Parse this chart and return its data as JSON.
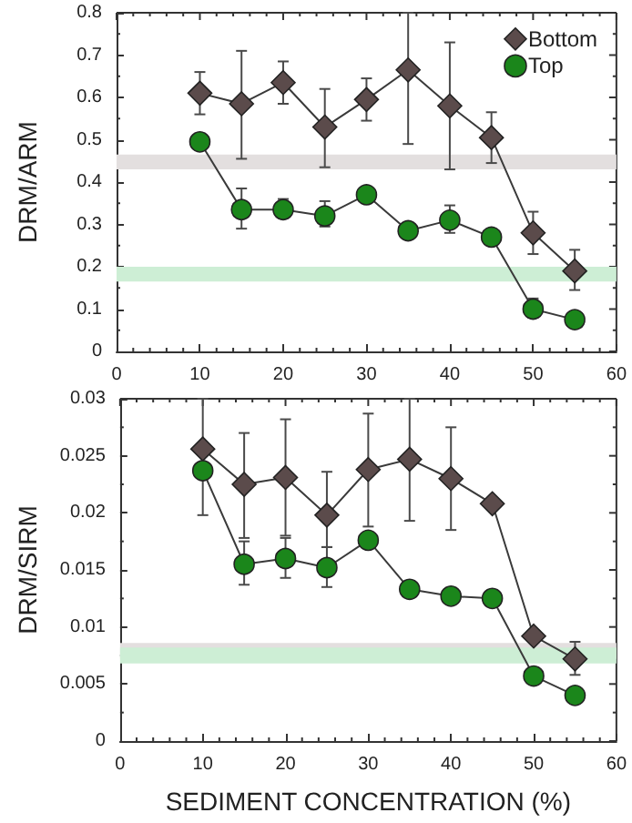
{
  "chart_data": [
    {
      "type": "line",
      "ylabel": "DRM/ARM",
      "x": [
        10,
        15,
        20,
        25,
        30,
        35,
        40,
        45,
        50,
        55
      ],
      "xlim": [
        0,
        60
      ],
      "xticks": [
        0,
        10,
        20,
        30,
        40,
        50,
        60
      ],
      "ylim": [
        0,
        0.8
      ],
      "yticks": [
        0,
        0.1,
        0.2,
        0.3,
        0.4,
        0.5,
        0.6,
        0.7,
        0.8
      ],
      "grid": false,
      "legend": "top right",
      "series": [
        {
          "name": "Bottom",
          "color": "#5b4b4b",
          "marker": "diamond",
          "values": [
            0.61,
            0.585,
            0.635,
            0.53,
            0.595,
            0.665,
            0.58,
            0.505,
            0.28,
            0.19
          ],
          "errors": [
            [
              0.56,
              0.66
            ],
            [
              0.455,
              0.71
            ],
            [
              0.585,
              0.685
            ],
            [
              0.435,
              0.62
            ],
            [
              0.545,
              0.645
            ],
            [
              0.49,
              0.8
            ],
            [
              0.43,
              0.73
            ],
            [
              0.445,
              0.565
            ],
            [
              0.23,
              0.33
            ],
            [
              0.145,
              0.24
            ]
          ]
        },
        {
          "name": "Top",
          "color": "#1b861b",
          "marker": "circle",
          "values": [
            0.495,
            0.335,
            0.335,
            0.32,
            0.37,
            0.285,
            0.31,
            0.27,
            0.1,
            0.075
          ],
          "errors": [
            null,
            [
              0.29,
              0.385
            ],
            [
              0.315,
              0.36
            ],
            [
              0.295,
              0.355
            ],
            null,
            null,
            [
              0.28,
              0.345
            ],
            null,
            [
              0.08,
              0.125
            ],
            null
          ]
        }
      ],
      "bands": [
        {
          "axis": "y",
          "from": 0.43,
          "to": 0.465,
          "color": "#e3dfdf"
        },
        {
          "axis": "y",
          "from": 0.165,
          "to": 0.2,
          "color": "#cdeed5"
        }
      ]
    },
    {
      "type": "line",
      "xlabel": "SEDIMENT CONCENTRATION (%)",
      "ylabel": "DRM/SIRM",
      "x": [
        10,
        15,
        20,
        25,
        30,
        35,
        40,
        45,
        50,
        55
      ],
      "xlim": [
        0,
        60
      ],
      "xticks": [
        0,
        10,
        20,
        30,
        40,
        50,
        60
      ],
      "ylim": [
        0,
        0.03
      ],
      "yticks": [
        0,
        0.005,
        0.01,
        0.015,
        0.02,
        0.025,
        0.03
      ],
      "grid": false,
      "series": [
        {
          "color": "#5b4b4b",
          "marker": "diamond",
          "values": [
            0.0256,
            0.0225,
            0.0231,
            0.0198,
            0.0238,
            0.0247,
            0.023,
            0.0208,
            0.0092,
            0.0072
          ],
          "errors": [
            [
              0.0198,
              0.03
            ],
            [
              0.0178,
              0.027
            ],
            [
              0.018,
              0.0282
            ],
            [
              0.017,
              0.0236
            ],
            [
              0.0188,
              0.0287
            ],
            [
              0.0193,
              0.03
            ],
            [
              0.0185,
              0.0275
            ],
            null,
            null,
            [
              0.0058,
              0.0087
            ]
          ]
        },
        {
          "color": "#1b861b",
          "marker": "circle",
          "values": [
            0.0237,
            0.0155,
            0.016,
            0.0152,
            0.0176,
            0.0133,
            0.0127,
            0.0125,
            0.0057,
            0.004
          ],
          "errors": [
            null,
            [
              0.0137,
              0.0175
            ],
            [
              0.0143,
              0.0178
            ],
            [
              0.0135,
              0.017
            ],
            null,
            null,
            null,
            null,
            null,
            null
          ]
        }
      ],
      "bands": [
        {
          "axis": "y",
          "from": 0.0072,
          "to": 0.0086,
          "color": "#e3dfdf"
        },
        {
          "axis": "y",
          "from": 0.0068,
          "to": 0.0082,
          "color": "#cdeed5"
        }
      ]
    }
  ]
}
